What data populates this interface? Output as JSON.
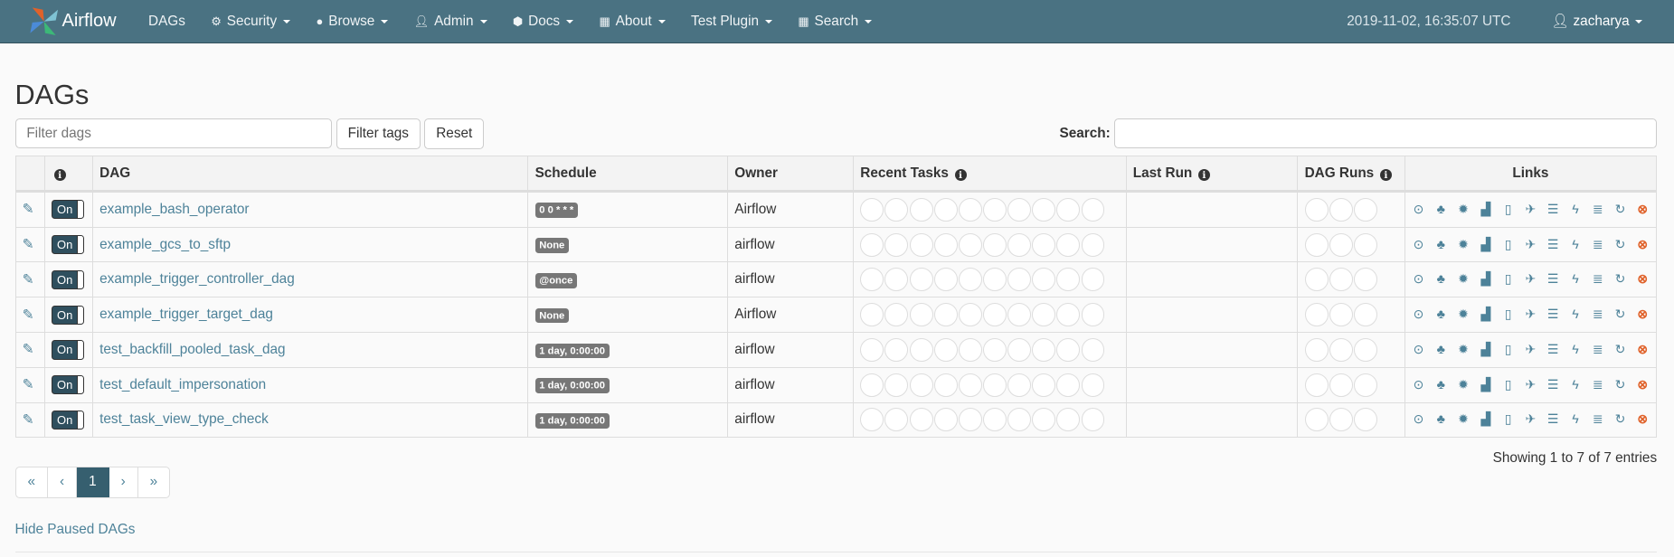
{
  "navbar": {
    "brand": "Airflow",
    "items": [
      {
        "label": "DAGs",
        "icon": "",
        "dropdown": false
      },
      {
        "label": "Security",
        "icon": "cogs-icon",
        "dropdown": true
      },
      {
        "label": "Browse",
        "icon": "globe-icon",
        "dropdown": true
      },
      {
        "label": "Admin",
        "icon": "user-icon",
        "dropdown": true
      },
      {
        "label": "Docs",
        "icon": "cube-icon",
        "dropdown": true
      },
      {
        "label": "About",
        "icon": "grid-icon",
        "dropdown": true
      },
      {
        "label": "Test Plugin",
        "icon": "",
        "dropdown": true
      },
      {
        "label": "Search",
        "icon": "grid-icon",
        "dropdown": true
      }
    ],
    "clock": "2019-11-02, 16:35:07 UTC",
    "user": "zacharya",
    "color": "#4a7282"
  },
  "page_title": "DAGs",
  "filters": {
    "placeholder": "Filter dags",
    "filter_tags": "Filter tags",
    "reset": "Reset",
    "search_label": "Search:",
    "search_value": ""
  },
  "table": {
    "headers": {
      "info": "i",
      "dag": "DAG",
      "schedule": "Schedule",
      "owner": "Owner",
      "recent_tasks": "Recent Tasks",
      "last_run": "Last Run",
      "dag_runs": "DAG Runs",
      "links": "Links"
    },
    "rows": [
      {
        "dag": "example_bash_operator",
        "schedule": "0 0 * * *",
        "owner": "Airflow",
        "toggle": "On",
        "last_run": ""
      },
      {
        "dag": "example_gcs_to_sftp",
        "schedule": "None",
        "owner": "airflow",
        "toggle": "On",
        "last_run": ""
      },
      {
        "dag": "example_trigger_controller_dag",
        "schedule": "@once",
        "owner": "airflow",
        "toggle": "On",
        "last_run": ""
      },
      {
        "dag": "example_trigger_target_dag",
        "schedule": "None",
        "owner": "Airflow",
        "toggle": "On",
        "last_run": ""
      },
      {
        "dag": "test_backfill_pooled_task_dag",
        "schedule": "1 day, 0:00:00",
        "owner": "airflow",
        "toggle": "On",
        "last_run": ""
      },
      {
        "dag": "test_default_impersonation",
        "schedule": "1 day, 0:00:00",
        "owner": "airflow",
        "toggle": "On",
        "last_run": ""
      },
      {
        "dag": "test_task_view_type_check",
        "schedule": "1 day, 0:00:00",
        "owner": "airflow",
        "toggle": "On",
        "last_run": ""
      }
    ],
    "link_icons": [
      "trigger-dag-icon",
      "tree-view-icon",
      "graph-view-icon",
      "duration-icon",
      "code-icon",
      "gantt-icon",
      "tries-icon",
      "landing-times-icon",
      "logs-icon",
      "refresh-icon",
      "delete-icon"
    ]
  },
  "pagination": {
    "first": "«",
    "prev": "‹",
    "current": "1",
    "next": "›",
    "last": "»"
  },
  "showing": "Showing 1 to 7 of 7 entries",
  "hide_paused": "Hide Paused DAGs",
  "colors": {
    "link": "#4d8299",
    "delete": "#e0622a",
    "active_page": "#365f6f"
  }
}
